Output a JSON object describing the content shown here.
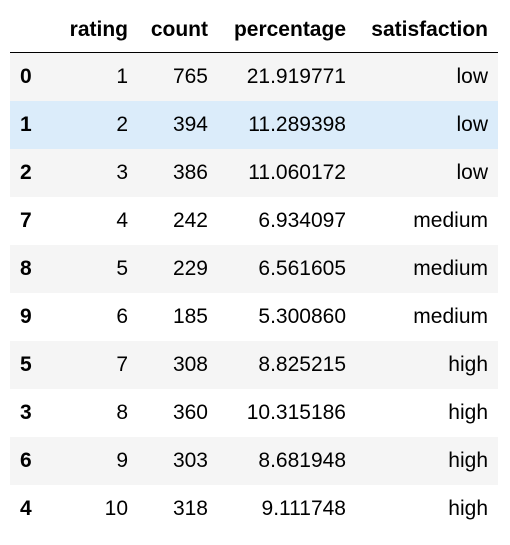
{
  "table": {
    "columns": {
      "index": "",
      "rating": "rating",
      "count": "count",
      "percentage": "percentage",
      "satisfaction": "satisfaction"
    },
    "rows": [
      {
        "index": "0",
        "rating": "1",
        "count": "765",
        "percentage": "21.919771",
        "satisfaction": "low"
      },
      {
        "index": "1",
        "rating": "2",
        "count": "394",
        "percentage": "11.289398",
        "satisfaction": "low"
      },
      {
        "index": "2",
        "rating": "3",
        "count": "386",
        "percentage": "11.060172",
        "satisfaction": "low"
      },
      {
        "index": "7",
        "rating": "4",
        "count": "242",
        "percentage": "6.934097",
        "satisfaction": "medium"
      },
      {
        "index": "8",
        "rating": "5",
        "count": "229",
        "percentage": "6.561605",
        "satisfaction": "medium"
      },
      {
        "index": "9",
        "rating": "6",
        "count": "185",
        "percentage": "5.300860",
        "satisfaction": "medium"
      },
      {
        "index": "5",
        "rating": "7",
        "count": "308",
        "percentage": "8.825215",
        "satisfaction": "high"
      },
      {
        "index": "3",
        "rating": "8",
        "count": "360",
        "percentage": "10.315186",
        "satisfaction": "high"
      },
      {
        "index": "6",
        "rating": "9",
        "count": "303",
        "percentage": "8.681948",
        "satisfaction": "high"
      },
      {
        "index": "4",
        "rating": "10",
        "count": "318",
        "percentage": "9.111748",
        "satisfaction": "high"
      }
    ],
    "hovered_row": 1,
    "colors": {
      "stripe": "#f5f5f5",
      "hover": "#dbecfa",
      "text": "#000000"
    }
  }
}
